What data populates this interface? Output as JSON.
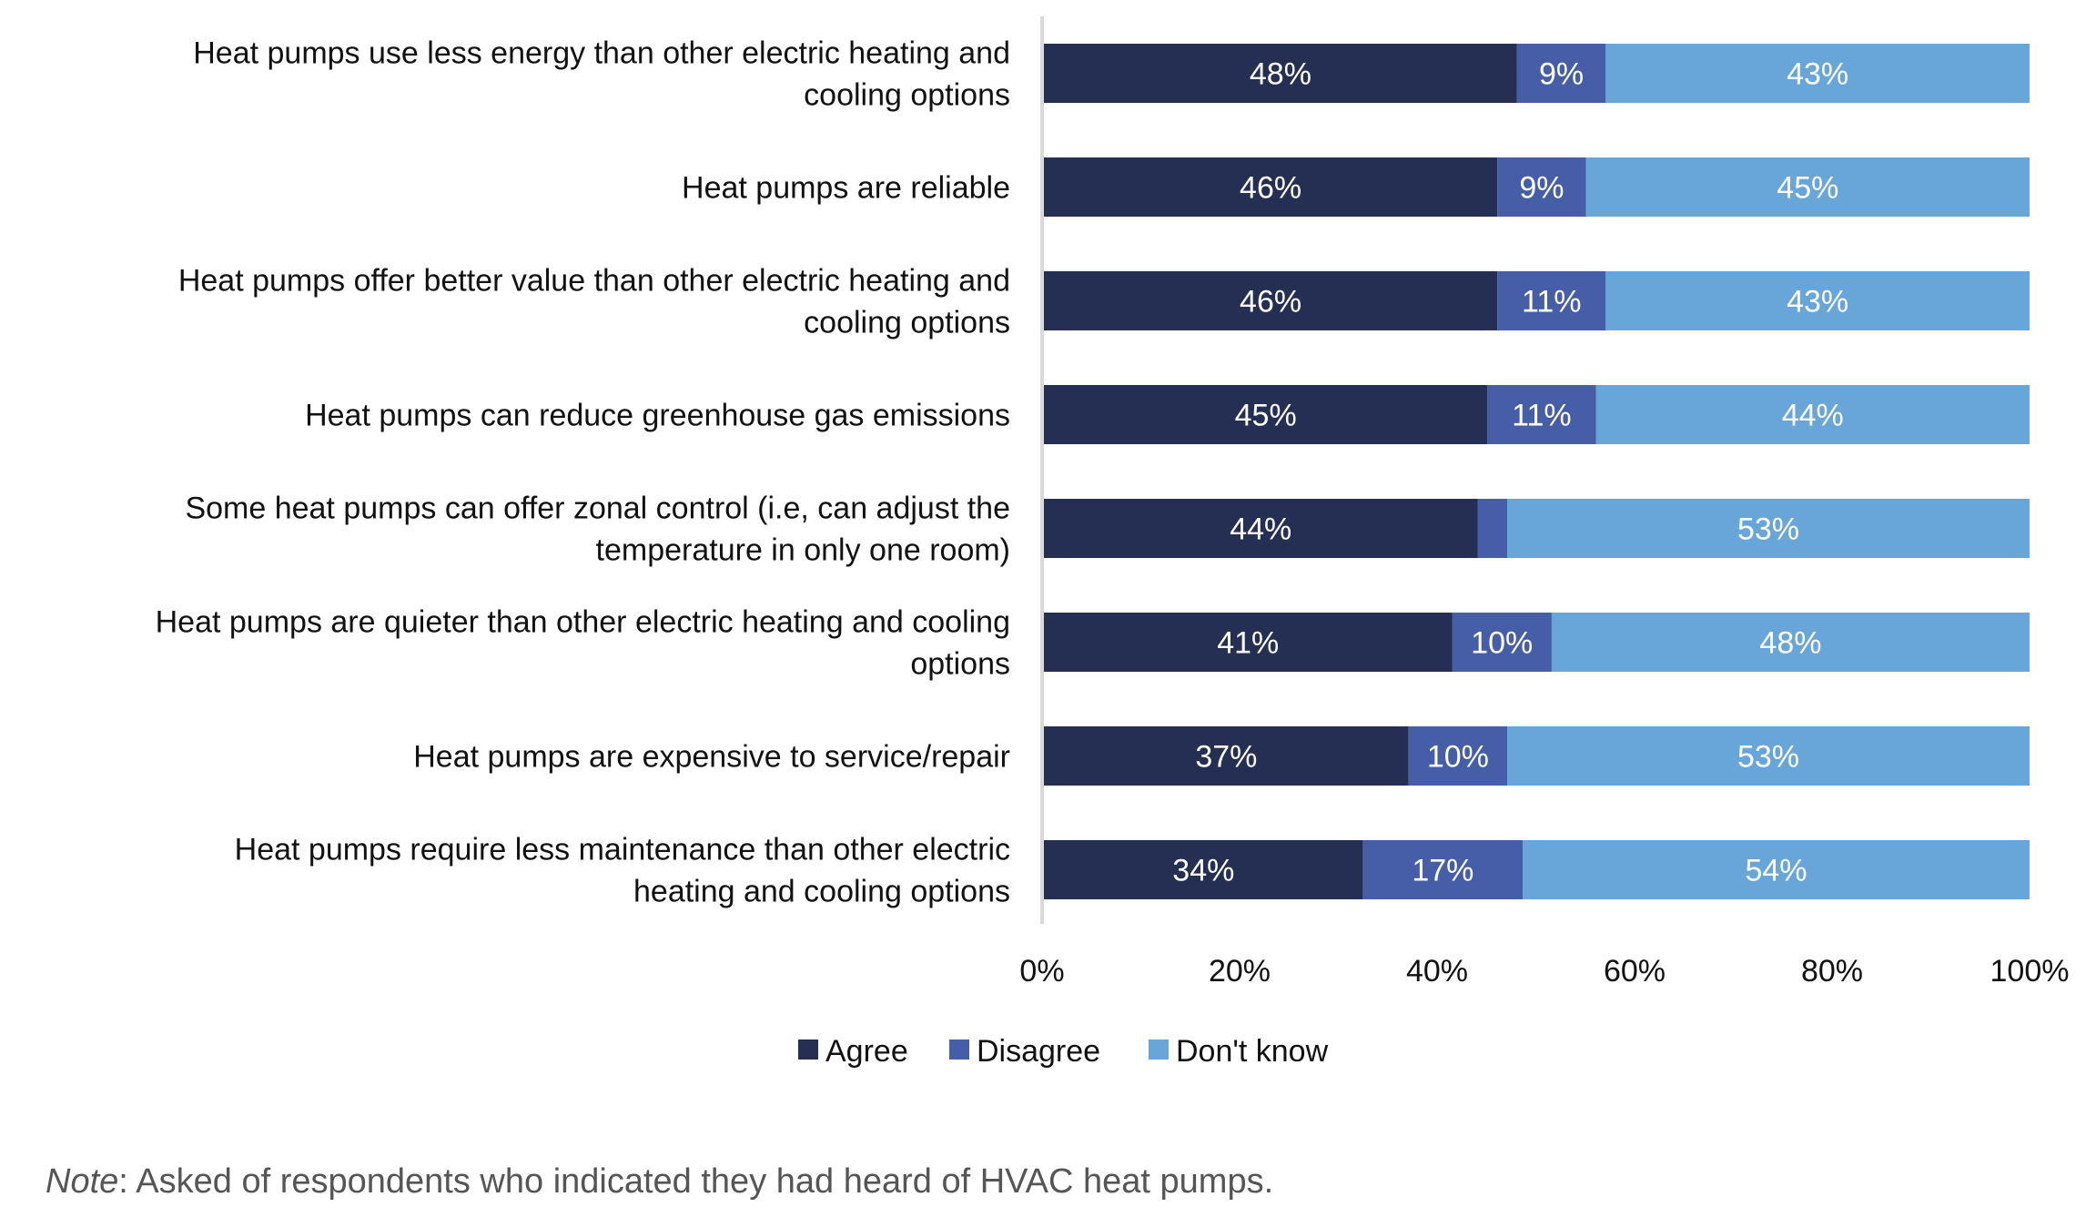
{
  "chart_data": {
    "type": "bar",
    "orientation": "horizontal",
    "stacked": true,
    "categories": [
      [
        "Heat pumps use less energy than other electric heating and",
        "cooling options"
      ],
      [
        "Heat pumps are reliable"
      ],
      [
        "Heat pumps offer better value than other electric heating and",
        "cooling options"
      ],
      [
        "Heat pumps can reduce greenhouse gas emissions"
      ],
      [
        "Some heat pumps can offer zonal control (i.e, can adjust the",
        "temperature in only one room)"
      ],
      [
        "Heat pumps are quieter than other electric heating and cooling",
        "options"
      ],
      [
        "Heat pumps are expensive to service/repair"
      ],
      [
        "Heat pumps require less maintenance than other electric",
        "heating and cooling options"
      ]
    ],
    "series": [
      {
        "name": "Agree",
        "color": "#252f53",
        "values": [
          48,
          46,
          46,
          45,
          44,
          41,
          37,
          34
        ],
        "labels": [
          "48%",
          "46%",
          "46%",
          "45%",
          "44%",
          "41%",
          "37%",
          "34%"
        ]
      },
      {
        "name": "Disagree",
        "color": "#465da8",
        "values": [
          9,
          9,
          11,
          11,
          3,
          10,
          10,
          17
        ],
        "labels": [
          "9%",
          "9%",
          "11%",
          "11%",
          "",
          "10%",
          "10%",
          "17%"
        ]
      },
      {
        "name": "Don't know",
        "color": "#68a5d8",
        "values": [
          43,
          45,
          43,
          44,
          53,
          48,
          53,
          54
        ],
        "labels": [
          "43%",
          "45%",
          "43%",
          "44%",
          "53%",
          "48%",
          "53%",
          "54%"
        ]
      }
    ],
    "xlim": [
      0,
      100
    ],
    "xticks": [
      "0%",
      "20%",
      "40%",
      "60%",
      "80%",
      "100%"
    ],
    "legend_position": "bottom",
    "grid": false
  },
  "note": {
    "label": "Note",
    "text": ": Asked of respondents who indicated they had heard of HVAC heat pumps."
  }
}
